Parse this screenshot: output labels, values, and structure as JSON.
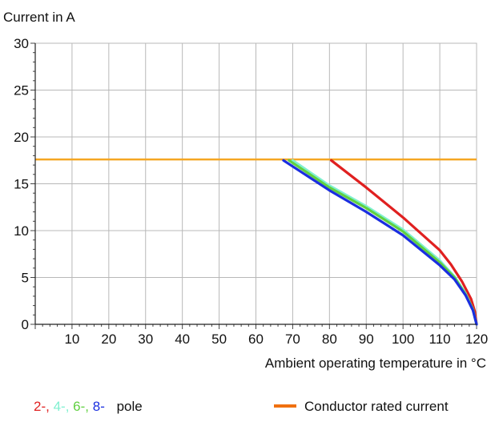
{
  "chart_data": {
    "type": "line",
    "ylabel": "Current in A",
    "xlabel": "Ambient operating temperature in °C",
    "xlim": [
      0,
      120
    ],
    "ylim": [
      0,
      30
    ],
    "x_ticks": [
      10,
      20,
      30,
      40,
      50,
      60,
      70,
      80,
      90,
      100,
      110,
      120
    ],
    "x_tick_labels": [
      "10",
      "20",
      "30",
      "40",
      "50",
      "60",
      "70",
      "80",
      "90",
      "100",
      "110",
      "120"
    ],
    "y_ticks": [
      0,
      5,
      10,
      15,
      20,
      25,
      30
    ],
    "y_tick_labels": [
      "0",
      "5",
      "10",
      "15",
      "20",
      "25",
      "30"
    ],
    "grid": true,
    "series": [
      {
        "color": "#e02020",
        "x": [
          80.5,
          90,
          100,
          110,
          113,
          116,
          118.5,
          119.5,
          120
        ],
        "y": [
          17.5,
          14.6,
          11.4,
          7.9,
          6.4,
          4.6,
          2.7,
          1.4,
          0
        ]
      },
      {
        "color": "#80f0d0",
        "x": [
          70,
          80,
          90,
          100,
          110,
          114,
          117,
          119,
          120
        ],
        "y": [
          17.5,
          14.8,
          12.6,
          10.1,
          6.8,
          5.1,
          3.3,
          1.6,
          0
        ]
      },
      {
        "color": "#60d040",
        "x": [
          69,
          80,
          90,
          100,
          110,
          114,
          117,
          119,
          120
        ],
        "y": [
          17.5,
          14.6,
          12.4,
          9.9,
          6.6,
          5.0,
          3.2,
          1.6,
          0
        ]
      },
      {
        "color": "#1a2ee0",
        "x": [
          67.5,
          80,
          90,
          100,
          110,
          114,
          117,
          119,
          120
        ],
        "y": [
          17.5,
          14.3,
          12.0,
          9.5,
          6.3,
          4.8,
          3.1,
          1.5,
          0
        ]
      }
    ],
    "rated_current": {
      "y": 17.6,
      "color": "#f5a623"
    },
    "legend": {
      "poles_parts": [
        {
          "text": "2-,",
          "color": "#e02020"
        },
        {
          "text": "4-,",
          "color": "#80f0d0"
        },
        {
          "text": "6-,",
          "color": "#60d040"
        },
        {
          "text": "8-",
          "color": "#1a2ee0"
        }
      ],
      "pole_label": "pole",
      "conductor_label": "Conductor rated current",
      "conductor_color": "#f07010"
    }
  }
}
